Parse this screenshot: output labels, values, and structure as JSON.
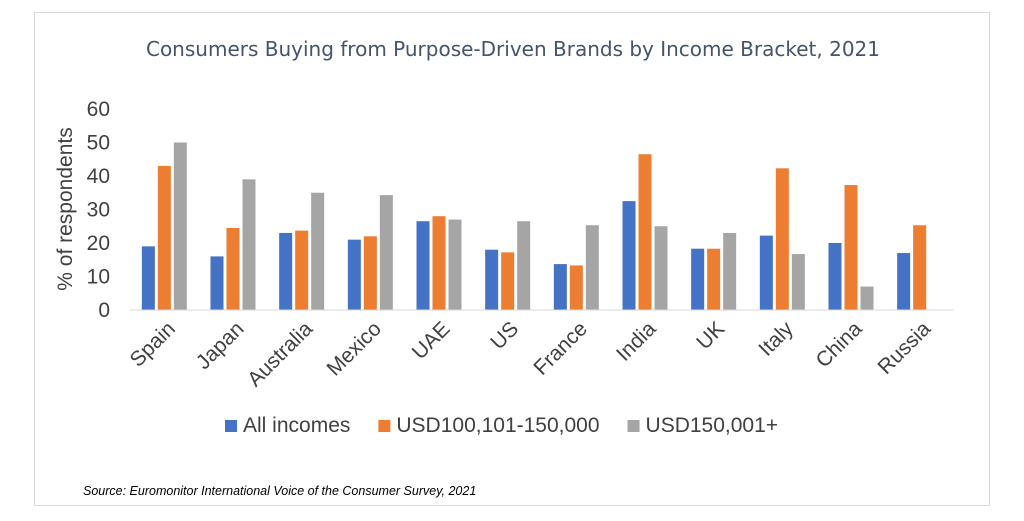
{
  "chart_data": {
    "type": "bar",
    "title": "Consumers Buying from Purpose-Driven Brands by Income Bracket, 2021",
    "ylabel": "% of respondents",
    "xlabel": "",
    "ylim": [
      0,
      60
    ],
    "yticks": [
      0,
      10,
      20,
      30,
      40,
      50,
      60
    ],
    "grid": false,
    "legend_position": "bottom",
    "categories": [
      "Spain",
      "Japan",
      "Australia",
      "Mexico",
      "UAE",
      "US",
      "France",
      "India",
      "UK",
      "Italy",
      "China",
      "Russia"
    ],
    "series": [
      {
        "name": "All incomes",
        "color": "#4472c4",
        "values": [
          19,
          16,
          23,
          21,
          26.5,
          18,
          13.7,
          32.5,
          18.3,
          22.2,
          20,
          17
        ]
      },
      {
        "name": "USD100,101-150,000",
        "color": "#ed7d31",
        "values": [
          43,
          24.5,
          23.7,
          22,
          28,
          17.2,
          13.3,
          46.5,
          18.3,
          42.3,
          37.3,
          25.3
        ]
      },
      {
        "name": "USD150,001+",
        "color": "#a5a5a5",
        "values": [
          50,
          39,
          35,
          34.3,
          27,
          26.5,
          25.3,
          25,
          23,
          16.7,
          7,
          null
        ]
      }
    ],
    "source": "Source: Euromonitor International Voice of the Consumer Survey, 2021"
  }
}
